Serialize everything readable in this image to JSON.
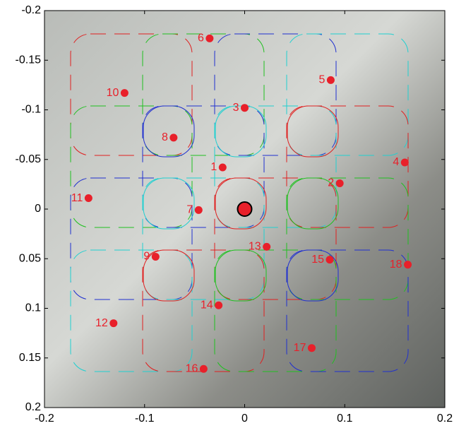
{
  "chart_data": {
    "type": "scatter",
    "xlim": [
      -0.2,
      0.2
    ],
    "xticks": [
      -0.2,
      -0.1,
      0,
      0.1,
      0.2
    ],
    "ylim": [
      -0.2,
      0.2
    ],
    "yticks": [
      -0.2,
      -0.15,
      -0.1,
      -0.05,
      0,
      0.05,
      0.1,
      0.15,
      0.2
    ],
    "y_inverted": true,
    "series": [
      {
        "color": "#e8202a",
        "labels": [
          "1",
          "2",
          "3",
          "4",
          "5",
          "6",
          "7",
          "8",
          "9",
          "10",
          "11",
          "12",
          "13",
          "14",
          "15",
          "16",
          "17",
          "18"
        ],
        "x": [
          -0.022,
          0.095,
          0.0,
          0.16,
          0.086,
          -0.035,
          -0.046,
          -0.071,
          -0.089,
          -0.12,
          -0.156,
          -0.131,
          0.022,
          -0.026,
          0.085,
          -0.041,
          0.067,
          0.163
        ],
        "values": [
          -0.042,
          -0.026,
          -0.102,
          -0.047,
          -0.13,
          -0.172,
          0.001,
          -0.072,
          0.048,
          -0.117,
          -0.011,
          0.115,
          0.038,
          0.097,
          0.051,
          0.161,
          0.14,
          0.056
        ]
      },
      {
        "color": "#e8202a",
        "x": [
          0
        ],
        "values": [
          0
        ]
      }
    ]
  }
}
